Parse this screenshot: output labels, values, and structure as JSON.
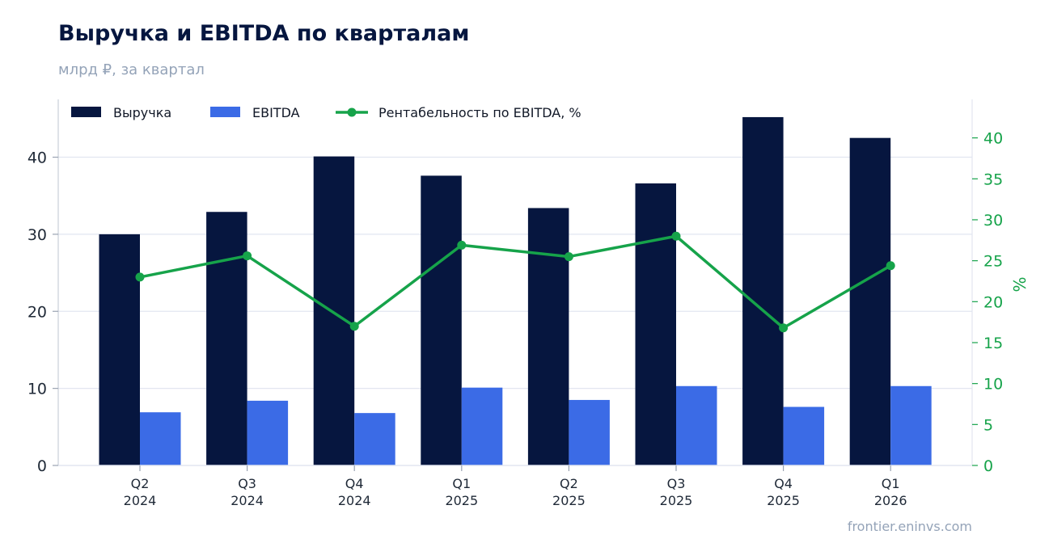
{
  "header": {
    "title": "Выручка и EBITDA по кварталам",
    "subtitle": "млрд ₽, за квартал"
  },
  "footer": {
    "source": "frontier.eninvs.com"
  },
  "chart_data": {
    "type": "bar",
    "categories": [
      [
        "Q2",
        "2024"
      ],
      [
        "Q3",
        "2024"
      ],
      [
        "Q4",
        "2024"
      ],
      [
        "Q1",
        "2025"
      ],
      [
        "Q2",
        "2025"
      ],
      [
        "Q3",
        "2025"
      ],
      [
        "Q4",
        "2025"
      ],
      [
        "Q1",
        "2026"
      ]
    ],
    "series": [
      {
        "name": "Выручка",
        "kind": "bar",
        "axis": "left",
        "color": "#06163f",
        "values": [
          30.0,
          32.9,
          40.1,
          37.6,
          33.4,
          36.6,
          45.2,
          42.5
        ]
      },
      {
        "name": "EBITDA",
        "kind": "bar",
        "axis": "left",
        "color": "#3b6be6",
        "values": [
          6.9,
          8.4,
          6.8,
          10.1,
          8.5,
          10.3,
          7.6,
          10.3
        ]
      },
      {
        "name": "Рентабельность по EBITDA, %",
        "kind": "line",
        "axis": "right",
        "color": "#16a34a",
        "values": [
          23.0,
          25.6,
          17.0,
          26.9,
          25.5,
          28.0,
          16.8,
          24.4
        ]
      }
    ],
    "y_left": {
      "range": [
        0,
        47.5
      ],
      "ticks": [
        0,
        10,
        20,
        30,
        40
      ]
    },
    "y_right": {
      "label": "%",
      "range": [
        0,
        44.7
      ],
      "ticks": [
        0,
        5,
        10,
        15,
        20,
        25,
        30,
        35,
        40
      ]
    },
    "grid": true,
    "legend_position": "top-left"
  }
}
